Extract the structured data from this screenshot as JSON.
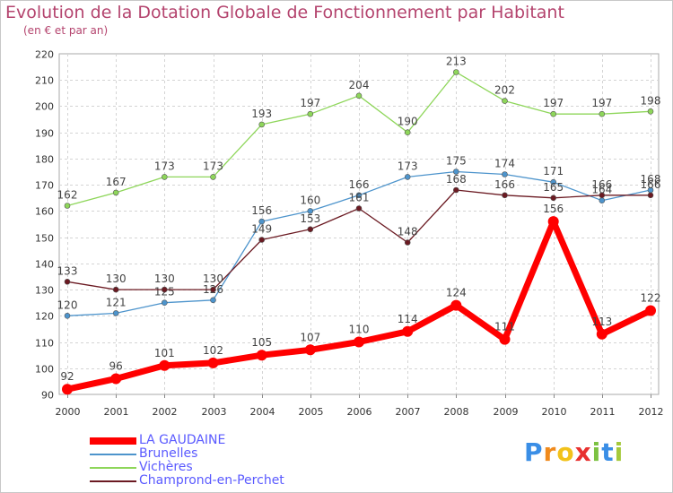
{
  "header": {
    "title": "Evolution de la Dotation Globale de Fonctionnement par Habitant",
    "subtitle": "(en € et par an)"
  },
  "logo": {
    "letters": [
      "P",
      "r",
      "o",
      "x",
      "i",
      "t",
      "i"
    ],
    "colors": [
      "#3a8ee6",
      "#f08a1c",
      "#f2c21b",
      "#e8312f",
      "#7cc242",
      "#3a8ee6",
      "#a5c93b"
    ]
  },
  "chart_data": {
    "type": "line",
    "title": "Evolution de la Dotation Globale de Fonctionnement par Habitant",
    "subtitle": "(en € et par an)",
    "x": [
      "2000",
      "2001",
      "2002",
      "2003",
      "2004",
      "2005",
      "2006",
      "2007",
      "2008",
      "2009",
      "2010",
      "2011",
      "2012"
    ],
    "ylim": [
      90,
      220
    ],
    "yticks": [
      90,
      100,
      110,
      120,
      130,
      140,
      150,
      160,
      170,
      180,
      190,
      200,
      210,
      220
    ],
    "grid": true,
    "legend_position": "bottom-left",
    "series": [
      {
        "name": "LA GAUDAINE",
        "color": "#ff0000",
        "values": [
          92,
          96,
          101,
          102,
          105,
          107,
          110,
          114,
          124,
          111,
          156,
          113,
          122
        ]
      },
      {
        "name": "Brunelles",
        "color": "#4d94cc",
        "values": [
          120,
          121,
          125,
          126,
          156,
          160,
          166,
          173,
          175,
          174,
          171,
          164,
          168
        ]
      },
      {
        "name": "Vichères",
        "color": "#8ed65a",
        "values": [
          162,
          167,
          173,
          173,
          193,
          197,
          204,
          190,
          213,
          202,
          197,
          197,
          198
        ]
      },
      {
        "name": "Champrond-en-Perchet",
        "color": "#6b1a22",
        "values": [
          133,
          130,
          130,
          130,
          149,
          153,
          161,
          148,
          168,
          166,
          165,
          166,
          166
        ]
      }
    ]
  }
}
